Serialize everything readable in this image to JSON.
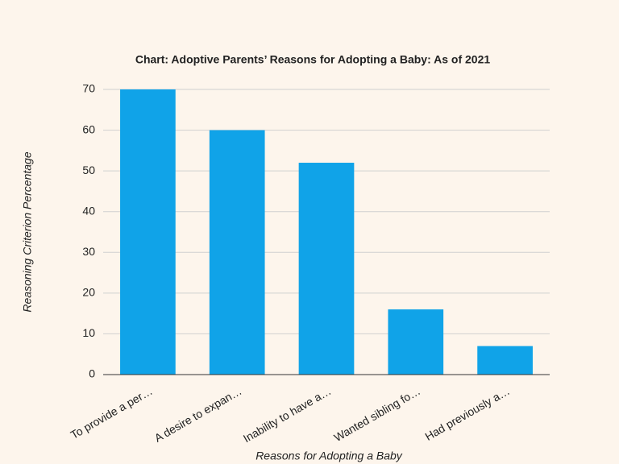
{
  "chart_data": {
    "type": "bar",
    "title": "Chart: Adoptive Parents’ Reasons for Adopting a Baby: As of 2021",
    "x_label": "Reasons for Adopting a Baby",
    "y_label": "Reasoning Criterion Percentage",
    "categories": [
      "To provide a per…",
      "A desire to expan…",
      "Inability to have a…",
      "Wanted sibling fo…",
      "Had previously a…"
    ],
    "values": [
      70,
      60,
      52,
      16,
      7
    ],
    "color": "#10a3e8",
    "ylim": [
      0,
      70
    ],
    "yticks": [
      0,
      10,
      20,
      30,
      40,
      50,
      60,
      70
    ],
    "grid": true
  }
}
